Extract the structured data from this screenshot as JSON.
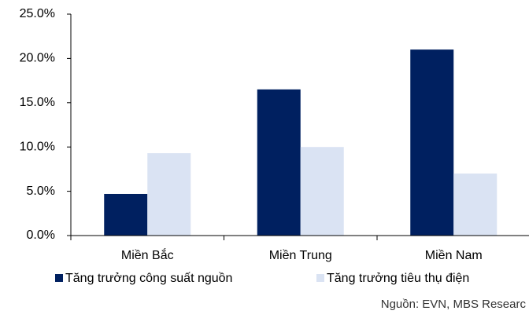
{
  "chart_data": {
    "type": "bar",
    "categories": [
      "Miền Bắc",
      "Miền Trung",
      "Miền Nam"
    ],
    "series": [
      {
        "name": "Tăng trưởng công suất nguồn",
        "color": "#002060",
        "values": [
          4.7,
          16.5,
          21.0
        ]
      },
      {
        "name": "Tăng trưởng tiêu thụ điện",
        "color": "#dae3f3",
        "values": [
          9.3,
          10.0,
          7.0
        ]
      }
    ],
    "ylim": [
      0,
      25
    ],
    "yticks": [
      {
        "value": 0,
        "label": "0.0%"
      },
      {
        "value": 5,
        "label": "5.0%"
      },
      {
        "value": 10,
        "label": "10.0%"
      },
      {
        "value": 15,
        "label": "15.0%"
      },
      {
        "value": 20,
        "label": "20.0%"
      },
      {
        "value": 25,
        "label": "25.0%"
      }
    ],
    "source": "Nguồn: EVN, MBS Researc"
  }
}
